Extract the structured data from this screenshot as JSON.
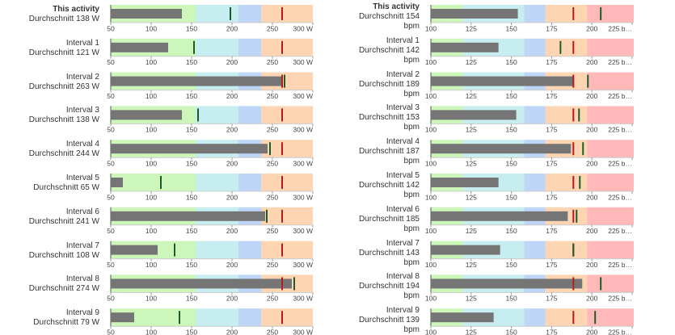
{
  "chart_data": [
    {
      "type": "bullet",
      "xlim": [
        50,
        300
      ],
      "xticks": [
        50,
        100,
        150,
        200,
        250,
        {
          "value": 300,
          "label": "300 W"
        }
      ],
      "band_edges": [
        155,
        208,
        236,
        300
      ],
      "band_colors": [
        "#cdf7ba",
        "#c6eef0",
        "#bdd5f7",
        "#fdd5b2"
      ],
      "bar_color": "#757575",
      "target_color": "#1e5b2a",
      "limit_color": "#b71c1c",
      "rows": [
        {
          "label": "This activity",
          "summary": "Durchschnitt 138 W",
          "value": 138,
          "target": 198,
          "limit": 262
        },
        {
          "label": "Interval 1",
          "summary": "Durchschnitt 121 W",
          "value": 121,
          "target": 153,
          "limit": 262
        },
        {
          "label": "Interval 2",
          "summary": "Durchschnitt 263 W",
          "value": 263,
          "target": 265,
          "limit": 262
        },
        {
          "label": "Interval 3",
          "summary": "Durchschnitt 138 W",
          "value": 138,
          "target": 158,
          "limit": 262
        },
        {
          "label": "Interval 4",
          "summary": "Durchschnitt 244 W",
          "value": 244,
          "target": 247,
          "limit": 262
        },
        {
          "label": "Interval 5",
          "summary": "Durchschnitt 65 W",
          "value": 65,
          "target": 112,
          "limit": 262
        },
        {
          "label": "Interval 6",
          "summary": "Durchschnitt 241 W",
          "value": 241,
          "target": 243,
          "limit": 262
        },
        {
          "label": "Interval 7",
          "summary": "Durchschnitt 108 W",
          "value": 108,
          "target": 129,
          "limit": 262
        },
        {
          "label": "Interval 8",
          "summary": "Durchschnitt 274 W",
          "value": 274,
          "target": 277,
          "limit": 262
        },
        {
          "label": "Interval 9",
          "summary": "Durchschnitt 79 W",
          "value": 79,
          "target": 135,
          "limit": 262
        }
      ]
    },
    {
      "type": "bullet",
      "xlim": [
        100,
        226
      ],
      "xticks": [
        100,
        125,
        150,
        175,
        200,
        {
          "value": 225,
          "label": "225 b…"
        }
      ],
      "band_edges": [
        120,
        158,
        171,
        197,
        226
      ],
      "band_colors": [
        "#cdf7ba",
        "#c6eef0",
        "#bdd5f7",
        "#fdd5b2",
        "#ffb9b9"
      ],
      "bar_color": "#757575",
      "target_color": "#1e5b2a",
      "limit_color": "#b71c1c",
      "rows": [
        {
          "label": "This activity",
          "summary": "Durchschnitt 154 bpm",
          "value": 154,
          "target": 205.5,
          "limit": 188.5
        },
        {
          "label": "Interval 1",
          "summary": "Durchschnitt 142 bpm",
          "value": 142,
          "target": 180.5,
          "limit": 188.5
        },
        {
          "label": "Interval 2",
          "summary": "Durchschnitt 189 bpm",
          "value": 189,
          "target": 197.5,
          "limit": 188.5
        },
        {
          "label": "Interval 3",
          "summary": "Durchschnitt 153 bpm",
          "value": 153,
          "target": 192,
          "limit": 188.5
        },
        {
          "label": "Interval 4",
          "summary": "Durchschnitt 187 bpm",
          "value": 187,
          "target": 194.5,
          "limit": 188.5
        },
        {
          "label": "Interval 5",
          "summary": "Durchschnitt 142 bpm",
          "value": 142,
          "target": 192.5,
          "limit": 188.5
        },
        {
          "label": "Interval 6",
          "summary": "Durchschnitt 185 bpm",
          "value": 185,
          "target": 190.5,
          "limit": 188.5
        },
        {
          "label": "Interval 7",
          "summary": "Durchschnitt 143 bpm",
          "value": 143,
          "target": 188.5,
          "limit": 188.5
        },
        {
          "label": "Interval 8",
          "summary": "Durchschnitt 194 bpm",
          "value": 194,
          "target": 205.5,
          "limit": 188.5
        },
        {
          "label": "Interval 9",
          "summary": "Durchschnitt 139 bpm",
          "value": 139,
          "target": 202,
          "limit": 188.5
        }
      ]
    }
  ]
}
